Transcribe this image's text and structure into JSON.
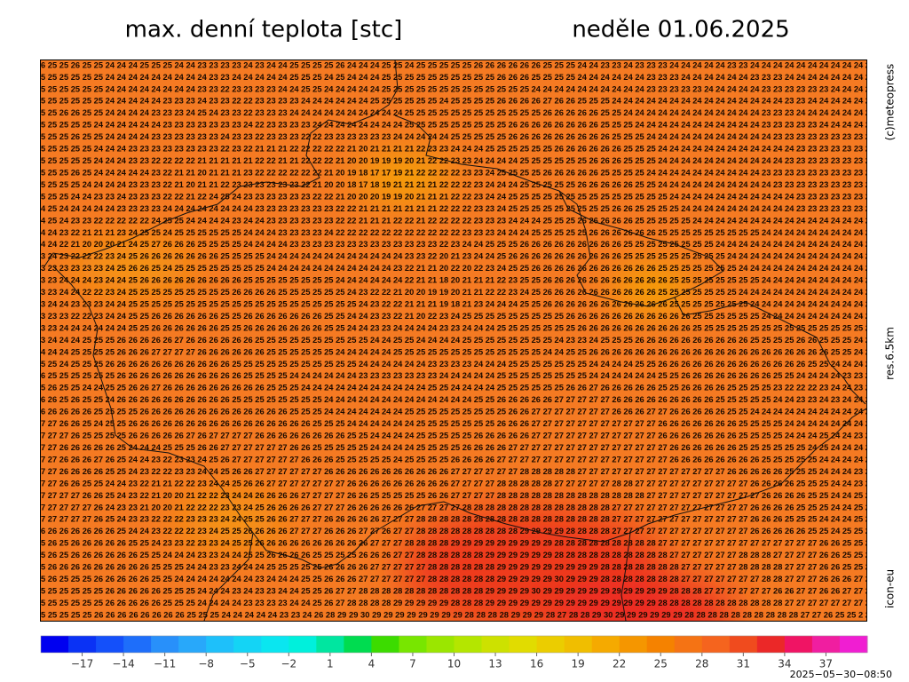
{
  "header": {
    "title": "max. denní teplota [stc]",
    "date": "neděle 01.06.2025"
  },
  "side_labels": [
    "(c)meteopress",
    "res.6.5km",
    "icon-eu"
  ],
  "timestamp": "2025−05−30−08:50",
  "grid": {
    "rows": [
      "6 25 25 26 25 25 24 24 24 25 25 25 24 24 23 23 23 23 24 23 24 24 25 25 25 25 26 24 24 24 25 25 24 25 25 25 25 25 26 26 26 26 26 26 25 25 25 24 24 23 23 24 23 23 23 24 24 24 24 24 23 23 24 24 24 24 24 24 24 24 24 24 2",
      "5 25 25 25 25 25 24 24 24 24 24 24 24 24 24 23 23 24 24 24 24 24 25 25 25 24 25 24 24 24 25 25 25 25 25 25 25 25 25 25 26 26 26 25 25 25 25 24 24 24 24 24 24 23 23 23 24 24 24 24 24 24 23 23 23 24 24 24 24 24 24 24 2",
      "5 25 25 25 25 25 24 24 24 24 24 24 24 24 23 23 22 23 23 23 23 24 24 25 25 24 24 24 24 24 25 25 25 25 25 25 25 25 25 25 25 25 25 24 24 24 24 24 24 24 24 24 24 23 23 23 23 23 24 24 24 24 24 23 23 23 23 23 23 24 24 24 2",
      "5 25 25 25 25 25 24 24 24 24 24 23 23 23 24 23 23 22 22 23 23 23 23 24 24 24 24 24 24 25 25 25 25 25 25 24 25 25 25 25 26 26 26 26 27 26 26 25 25 25 24 24 24 24 24 24 24 24 24 24 24 24 24 24 24 23 23 24 24 24 24 24 2",
      "5 25 26 26 25 25 24 24 24 24 23 23 23 24 25 24 23 23 22 23 23 23 24 24 24 24 24 24 24 24 24 24 25 25 25 25 25 25 25 25 25 25 25 25 26 26 26 26 26 25 25 24 24 24 24 24 24 24 24 24 24 24 24 23 23 23 24 24 24 24 24 24 2",
      "5 25 25 25 25 24 24 24 24 24 24 23 23 23 23 23 23 23 24 22 23 23 23 23 24 24 24 24 24 24 24 24 25 25 25 25 25 25 25 25 25 26 26 26 26 26 26 26 26 25 25 25 24 24 24 24 24 24 24 24 24 24 24 23 23 23 23 23 24 24 24 24 2",
      "5 25 25 26 25 25 24 24 24 24 23 23 23 23 23 23 24 23 23 22 23 23 23 22 22 23 23 23 23 23 23 24 24 24 24 24 25 25 25 25 25 26 26 26 26 26 26 26 26 26 25 25 25 24 24 24 24 24 24 24 24 24 24 24 23 23 23 23 23 23 23 23 2",
      "5 25 25 25 25 24 24 24 23 23 23 23 23 23 23 23 22 23 22 21 21 21 22 22 22 22 22 21 20 21 21 21 21 22 23 23 24 24 24 25 25 25 25 25 25 26 26 26 26 26 26 25 25 25 24 24 24 24 24 24 24 24 24 24 24 24 23 23 23 23 23 23 2",
      "5 25 25 25 25 24 24 24 23 23 22 22 22 22 21 21 21 21 21 22 22 21 21 22 22 22 21 20 20 19 19 19 20 21 22 22 23 23 24 24 24 24 25 25 25 25 25 25 26 26 26 25 25 25 24 24 24 24 24 24 24 24 24 24 24 23 23 23 23 23 23 23 2",
      "5 25 25 26 25 24 24 24 24 24 23 22 21 21 20 21 21 21 23 22 22 22 22 22 22 21 20 19 18 17 17 19 21 22 22 22 22 23 23 24 25 25 25 25 26 26 26 26 26 25 25 25 25 24 24 24 24 24 24 24 24 24 24 23 23 23 23 23 23 23 23 23 2",
      "5 25 25 25 24 24 24 24 23 23 23 22 21 20 21 21 22 23 23 23 23 23 23 22 21 20 20 18 17 18 19 21 21 21 21 22 22 22 23 24 24 24 25 25 25 25 25 26 26 26 26 26 25 25 24 24 24 24 24 24 24 24 24 24 23 23 23 23 23 23 23 23 2",
      "5 25 25 24 24 23 23 24 23 23 23 22 22 21 22 24 25 24 23 23 23 23 23 23 22 22 21 20 20 20 19 19 20 21 21 21 22 22 23 24 24 25 25 25 25 25 25 25 25 25 25 25 25 25 25 24 24 24 24 24 24 24 24 24 24 24 23 23 23 23 23 23 2",
      "4 25 24 24 24 24 24 23 23 23 23 24 24 24 24 24 24 24 24 23 23 23 23 23 23 23 22 22 21 21 21 21 21 21 21 22 22 22 23 23 24 25 25 25 25 25 25 25 25 25 26 26 25 25 25 25 24 24 24 24 24 24 24 24 24 24 23 23 23 23 23 23 2",
      "4 25 24 23 23 22 22 22 22 22 24 25 25 24 24 24 24 23 24 24 23 23 23 23 23 23 22 22 21 21 21 22 22 21 22 22 22 22 23 23 23 24 24 24 25 25 25 26 26 26 26 26 25 25 25 25 25 24 24 24 24 24 24 24 24 24 24 24 24 24 24 24 2",
      "4 24 23 22 21 21 21 23 24 25 25 24 25 25 25 25 25 25 24 24 24 23 23 23 23 24 22 22 22 22 22 22 22 22 22 22 22 23 23 23 24 24 24 25 25 25 25 25 26 26 26 26 26 26 25 25 25 25 25 25 25 25 25 24 24 24 24 24 24 24 24 24 2",
      "4 24 22 21 20 20 20 21 24 25 27 26 26 26 25 25 25 25 24 24 24 24 23 23 23 23 23 23 23 23 23 23 23 23 23 22 23 24 24 25 25 25 26 26 26 26 26 26 26 26 26 25 25 25 25 25 25 25 25 24 24 24 24 24 24 24 24 24 24 24 24 24 2",
      "3 24 23 22 22 22 23 24 25 26 26 26 26 26 26 26 25 25 25 25 24 24 24 24 24 24 24 24 24 24 24 24 23 23 22 20 21 23 24 24 25 26 26 26 26 26 26 26 26 26 26 25 25 25 25 25 25 25 25 25 24 24 24 24 24 24 24 24 24 24 24 24 2",
      "3 23 23 23 23 23 24 25 26 26 25 24 25 25 25 25 25 25 25 25 24 24 24 24 24 24 24 24 24 24 24 23 22 21 21 20 22 20 22 23 24 25 25 26 26 26 26 26 26 26 26 26 26 26 25 25 25 25 25 25 25 24 24 24 24 24 24 24 24 24 24 24 2",
      "3 23 24 24 24 23 24 24 25 26 26 26 26 26 26 26 26 26 25 25 25 25 25 25 25 25 24 24 24 24 24 24 22 21 21 18 20 21 21 21 22 23 25 25 26 26 26 26 26 26 26 26 26 26 26 25 25 25 25 25 25 25 25 24 24 24 24 24 24 24 24 24 2",
      "3 23 24 24 22 22 23 24 25 25 25 25 25 25 25 25 25 26 26 26 26 25 25 25 25 25 25 24 23 22 22 21 20 20 19 19 20 21 21 22 22 23 24 25 26 26 26 26 26 26 26 26 26 26 25 25 25 25 25 25 25 24 24 24 24 24 24 24 24 24 24 24 2",
      "3 24 24 23 23 23 24 24 25 25 25 25 25 25 25 25 25 25 25 25 25 25 25 25 25 25 25 25 24 23 22 22 21 21 21 19 18 21 23 24 24 24 25 25 26 26 26 26 26 26 26 26 26 26 26 25 25 25 25 25 25 25 24 24 24 24 24 24 24 24 24 24 2",
      "3 23 23 22 22 23 24 24 25 25 26 26 26 26 26 26 25 25 26 26 26 26 26 26 26 25 25 24 24 23 23 22 21 20 22 23 24 25 25 25 25 25 25 25 25 25 26 26 26 26 26 26 26 26 26 26 26 25 25 25 25 25 25 24 24 24 24 24 24 24 24 24 2",
      "3 23 24 24 24 24 24 24 25 25 26 26 26 26 26 26 25 25 26 26 26 26 26 26 26 25 25 24 24 23 23 24 24 24 24 23 23 24 24 24 25 25 25 25 25 25 25 26 26 26 26 26 26 26 26 26 26 25 25 25 25 25 25 25 25 25 25 25 25 25 25 25 2",
      "3 24 24 24 25 25 25 26 26 26 26 26 27 26 26 26 26 26 26 25 25 25 25 25 25 25 25 25 25 24 24 25 25 24 24 24 24 25 25 25 25 25 25 25 25 24 23 23 24 25 25 25 26 26 26 26 26 26 26 26 26 26 25 25 25 25 26 26 25 25 25 24 2",
      "4 24 24 25 25 25 25 26 26 26 27 27 27 27 26 26 26 26 26 26 25 25 25 25 25 25 24 24 24 24 24 25 25 25 25 25 25 25 25 25 25 25 25 25 24 24 25 25 26 26 26 26 26 26 26 26 26 26 26 26 26 26 26 26 26 26 26 26 26 25 25 24 2",
      "5 25 24 25 25 25 26 26 26 26 26 26 26 26 26 26 26 25 25 25 25 25 25 25 25 25 25 25 24 24 24 24 24 24 23 23 23 23 24 24 24 25 25 25 25 25 25 25 24 24 24 24 25 25 26 26 26 26 26 26 26 26 26 26 26 26 26 25 25 24 24 24 2",
      "6 25 25 25 25 25 25 26 26 26 26 26 26 26 26 26 26 26 25 25 25 25 24 24 24 24 24 24 23 23 23 23 23 23 23 24 24 24 24 24 25 25 25 25 25 25 25 25 24 24 24 24 24 24 25 25 26 26 26 26 26 26 26 26 25 25 24 24 24 24 23 23 2",
      "5 26 25 25 24 24 25 25 26 26 27 26 26 26 26 26 26 26 26 26 25 25 25 24 24 24 24 24 24 24 24 24 24 24 25 25 24 24 24 24 25 25 25 25 25 25 26 26 27 26 26 26 26 26 25 25 26 26 26 26 25 25 25 25 23 22 22 22 23 24 24 23 2",
      "6 26 25 26 25 25 24 26 26 26 26 26 26 26 26 26 26 25 25 25 25 25 25 25 25 24 24 24 24 24 24 24 24 24 24 24 24 24 25 25 26 26 26 26 26 27 27 27 27 27 26 26 26 26 26 26 26 26 26 25 25 25 25 25 24 24 23 23 24 23 24 24 2",
      "6 26 26 26 26 25 25 25 25 26 26 26 26 26 26 26 26 26 26 26 26 26 25 25 25 24 24 24 24 24 24 24 25 25 25 25 25 25 25 25 25 26 26 27 27 27 27 27 27 27 26 26 26 27 27 26 26 26 26 26 25 25 24 24 24 24 24 24 24 24 24 24 2",
      "7 27 26 26 25 24 25 25 26 26 26 26 26 26 26 26 26 26 26 26 26 26 26 26 25 25 25 24 24 24 24 24 24 25 25 25 25 25 25 25 26 26 26 27 27 27 27 27 27 27 27 27 27 27 26 26 26 26 26 26 26 25 25 25 25 24 24 24 24 24 24 24 2",
      "7 27 27 26 25 25 25 25 26 26 26 26 26 27 26 27 27 27 27 26 26 26 26 26 26 26 26 25 25 24 24 24 24 25 25 25 25 25 26 26 26 26 26 27 27 27 27 27 27 27 27 27 27 27 26 26 26 26 26 26 26 25 25 25 25 24 24 24 25 24 24 23 2",
      "7 27 26 26 26 26 26 25 24 24 24 25 25 25 26 26 27 27 27 27 27 27 26 26 25 25 25 25 25 24 24 24 24 25 25 25 25 26 26 26 26 27 27 27 27 27 27 27 27 27 27 27 27 27 27 26 26 26 26 26 26 25 25 25 25 25 25 24 25 24 24 24 2",
      "7 27 26 26 26 27 26 25 24 24 23 22 23 23 24 25 26 27 27 27 27 27 27 26 26 26 25 25 25 25 25 24 25 25 25 25 26 26 26 26 27 27 27 27 27 27 27 27 27 27 27 27 27 27 27 26 26 26 26 26 26 26 26 25 25 25 25 25 24 24 24 24 2",
      "7 27 26 26 26 26 25 25 24 23 22 22 23 23 24 24 25 26 26 27 27 27 27 27 27 26 26 26 26 26 26 26 26 26 26 26 27 27 27 27 27 27 28 28 28 28 28 27 27 27 27 27 27 27 27 27 27 27 27 27 26 26 26 26 26 25 25 25 24 24 24 23 2",
      "7 27 26 26 25 25 24 24 23 22 21 21 22 22 23 24 24 25 26 26 27 27 27 27 27 27 27 26 26 26 26 26 26 26 26 26 27 27 27 27 28 28 28 28 28 27 27 27 27 27 28 28 27 27 27 27 27 27 27 27 27 27 26 26 26 26 25 25 25 24 24 23 2",
      "7 27 27 27 26 26 25 24 23 22 21 20 20 21 22 22 23 24 24 26 26 26 26 27 27 27 27 26 26 25 25 25 25 25 26 26 27 27 27 27 28 28 28 28 28 28 28 28 28 28 28 28 28 27 27 27 27 27 27 27 27 27 27 26 26 26 26 25 25 24 24 25 2",
      "7 27 27 27 27 26 24 23 23 21 20 20 21 22 22 22 23 23 24 25 26 26 26 26 27 27 27 26 26 26 26 26 26 27 27 27 27 28 28 28 28 28 28 28 28 28 28 28 28 28 27 27 27 27 27 27 27 27 27 27 27 27 26 26 26 26 25 25 25 24 24 25 2",
      "7 27 27 27 27 26 25 24 23 23 22 22 22 23 23 23 24 24 25 25 26 26 27 27 27 26 26 26 26 26 27 27 27 28 28 28 28 28 28 28 28 28 28 28 28 28 28 28 28 28 27 27 27 27 27 27 27 27 27 27 27 27 26 26 26 25 25 25 24 24 24 25 2",
      "6 26 26 26 26 26 26 25 24 24 23 22 22 22 23 24 25 25 26 26 26 26 27 27 27 26 26 26 27 27 26 27 27 28 28 28 28 28 28 28 28 28 29 29 29 29 28 28 28 28 27 27 27 27 27 27 27 27 27 27 27 27 26 26 26 26 26 25 25 24 25 25 2",
      "5 26 25 26 26 26 26 26 25 25 24 23 23 22 23 23 24 25 25 26 26 26 26 26 26 26 26 26 26 27 27 27 28 28 28 28 29 29 29 29 29 29 29 29 29 28 28 28 28 28 28 28 28 28 27 27 27 27 27 27 27 27 27 27 27 27 27 27 26 26 25 25 2",
      "5 26 25 26 26 26 26 26 26 25 25 24 24 24 23 23 24 24 25 25 26 26 26 26 25 25 25 25 26 26 26 27 27 28 28 28 28 28 28 29 29 29 29 29 29 28 28 28 28 28 28 28 28 28 28 27 27 27 27 27 27 28 28 28 27 27 27 27 26 26 25 25 2",
      "5 26 26 26 26 26 26 26 26 26 25 25 25 24 24 23 23 24 24 24 25 25 25 25 25 26 26 26 26 27 27 27 27 27 28 28 28 28 28 28 29 29 29 29 29 29 29 29 29 28 28 28 28 28 28 28 27 27 27 27 27 28 28 28 28 27 27 27 26 26 25 25 2",
      "5 26 25 25 25 26 26 26 26 26 25 25 24 24 24 24 24 24 24 23 24 24 24 25 25 26 26 26 27 27 27 27 27 27 28 28 28 28 28 28 29 29 29 29 29 30 29 29 29 28 28 28 28 28 28 28 27 27 27 27 27 27 27 28 28 27 27 27 26 26 26 27 2",
      "5 25 25 25 25 25 26 26 26 26 26 25 25 25 24 24 24 23 24 23 23 24 24 25 25 26 27 27 28 28 28 28 28 28 28 28 28 28 28 29 29 29 29 30 29 29 29 29 29 29 29 29 29 29 29 28 28 28 27 27 27 27 27 27 26 26 27 27 26 26 27 27 2",
      "5 25 25 25 25 25 26 26 26 26 26 25 25 25 24 24 24 24 23 23 23 23 24 24 25 26 27 28 28 28 28 29 29 29 29 29 28 28 28 29 29 29 29 29 29 29 29 29 29 29 29 29 29 29 28 28 28 28 28 28 28 28 28 28 28 27 27 27 27 27 27 27 2",
      "5 25 25 25 25 26 26 26 26 26 26 26 26 25 25 25 24 24 24 24 24 23 23 24 26 28 29 29 30 29 29 29 29 29 29 29 29 28 28 28 28 29 29 29 28 27 28 28 29 30 29 29 29 29 29 29 28 28 28 28 28 28 28 28 28 28 27 27 26 25 25 2 2"
    ]
  },
  "colorbar": {
    "lim": [
      -20,
      40
    ],
    "ticks": [
      {
        "value": -17,
        "label": "−17"
      },
      {
        "value": -14,
        "label": "−14"
      },
      {
        "value": -11,
        "label": "−11"
      },
      {
        "value": -8,
        "label": "−8"
      },
      {
        "value": -5,
        "label": "−5"
      },
      {
        "value": -2,
        "label": "−2"
      },
      1,
      4,
      7,
      10,
      13,
      16,
      19,
      22,
      25,
      28,
      31,
      34,
      37
    ],
    "colors": [
      "#0000f0",
      "#0a32f5",
      "#1450fa",
      "#1e6efa",
      "#2890fa",
      "#28a8fa",
      "#1ec0fa",
      "#14d4f5",
      "#0ae6f0",
      "#00f0dc",
      "#00e6a0",
      "#00dc50",
      "#3cdc00",
      "#78e600",
      "#9be600",
      "#b4e600",
      "#cde100",
      "#e1dc00",
      "#ebcd00",
      "#f0be00",
      "#f5aa00",
      "#f59600",
      "#f58200",
      "#f57314",
      "#f5641e",
      "#f04b1e",
      "#eb2828",
      "#f01464",
      "#f01ea0",
      "#f01ed2"
    ]
  }
}
